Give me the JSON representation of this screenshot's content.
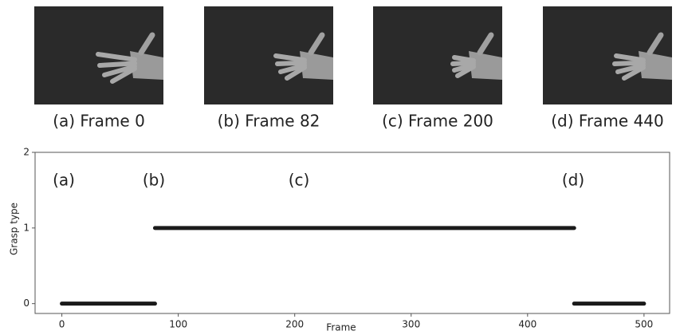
{
  "panels": [
    {
      "caption": "(a) Frame 0"
    },
    {
      "caption": "(b) Frame 82"
    },
    {
      "caption": "(c) Frame 200"
    },
    {
      "caption": "(d) Frame 440"
    }
  ],
  "chart_data": {
    "type": "line",
    "xlabel": "Frame",
    "ylabel": "Grasp type",
    "annotations": [
      "(a)",
      "(b)",
      "(c)",
      "(d)"
    ],
    "x": [
      0,
      80,
      80,
      80,
      440,
      440,
      440,
      500
    ],
    "series": [
      {
        "name": "Grasp type",
        "color": "#1a1a1a",
        "values": [
          0,
          0,
          null,
          1,
          1,
          null,
          0,
          0
        ]
      }
    ],
    "xlim": [
      -23,
      522
    ],
    "ylim": [
      -0.13,
      2
    ],
    "xticks": [
      0,
      100,
      200,
      300,
      400,
      500
    ],
    "yticks": [
      0,
      1,
      2
    ]
  }
}
